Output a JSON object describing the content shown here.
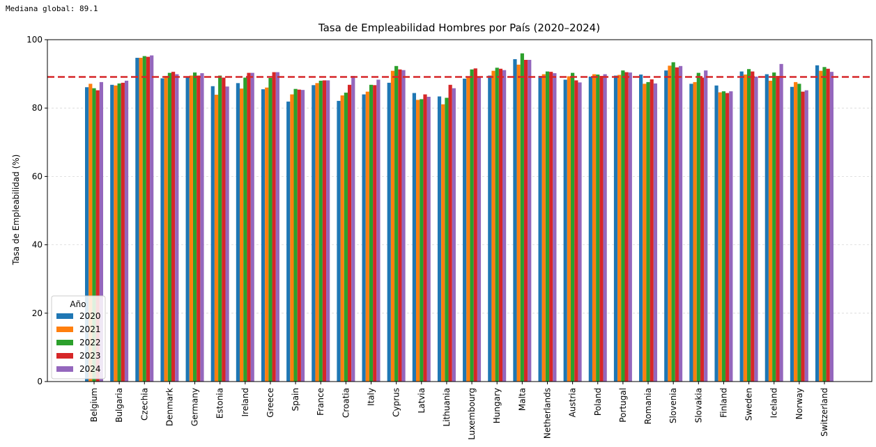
{
  "header": {
    "median_text": "Mediana global: 89.1"
  },
  "chart_data": {
    "type": "bar",
    "title": "Tasa de Empleabilidad Hombres por País (2020–2024)",
    "xlabel": "",
    "ylabel": "Tasa de Empleabilidad (%)",
    "ylim": [
      0,
      100
    ],
    "yticks": [
      0,
      20,
      40,
      60,
      80,
      100
    ],
    "grid": true,
    "legend_title": "Año",
    "legend_position": "lower-left",
    "reference_line": {
      "value": 89.1,
      "color": "#d62728",
      "style": "dashed"
    },
    "categories": [
      "Belgium",
      "Bulgaria",
      "Czechia",
      "Denmark",
      "Germany",
      "Estonia",
      "Ireland",
      "Greece",
      "Spain",
      "France",
      "Croatia",
      "Italy",
      "Cyprus",
      "Latvia",
      "Lithuania",
      "Luxembourg",
      "Hungary",
      "Malta",
      "Netherlands",
      "Austria",
      "Poland",
      "Portugal",
      "Romania",
      "Slovenia",
      "Slovakia",
      "Finland",
      "Sweden",
      "Iceland",
      "Norway",
      "Switzerland"
    ],
    "series": [
      {
        "name": "2020",
        "color": "#1f77b4",
        "values": [
          86.1,
          86.8,
          94.7,
          88.7,
          89.0,
          86.4,
          87.3,
          85.5,
          81.9,
          86.7,
          82.1,
          84.0,
          87.4,
          84.4,
          83.4,
          88.6,
          89.5,
          94.3,
          89.4,
          88.3,
          89.2,
          89.5,
          89.8,
          91.0,
          87.1,
          86.6,
          90.7,
          89.9,
          86.2,
          92.5
        ]
      },
      {
        "name": "2021",
        "color": "#ff7f0e",
        "values": [
          87.1,
          86.6,
          94.7,
          89.4,
          89.5,
          83.9,
          85.7,
          86.0,
          84.0,
          87.3,
          83.7,
          84.8,
          90.9,
          82.4,
          81.1,
          89.2,
          90.9,
          92.7,
          89.9,
          89.3,
          89.9,
          89.7,
          87.1,
          92.4,
          87.6,
          84.6,
          89.8,
          88.0,
          87.6,
          90.9
        ]
      },
      {
        "name": "2022",
        "color": "#2ca02c",
        "values": [
          85.8,
          87.2,
          95.2,
          90.3,
          90.4,
          89.5,
          88.9,
          88.8,
          85.6,
          88.0,
          84.5,
          86.8,
          92.3,
          82.6,
          83.0,
          91.3,
          91.8,
          96.0,
          90.7,
          90.3,
          89.8,
          91.0,
          87.6,
          93.4,
          90.3,
          84.9,
          91.4,
          90.4,
          87.1,
          92.0
        ]
      },
      {
        "name": "2023",
        "color": "#d62728",
        "values": [
          85.2,
          87.4,
          95.0,
          90.6,
          89.5,
          88.9,
          90.3,
          90.5,
          85.4,
          88.1,
          86.8,
          86.7,
          91.3,
          84.0,
          86.8,
          91.6,
          91.5,
          94.1,
          90.6,
          88.1,
          89.4,
          90.5,
          88.4,
          91.9,
          88.9,
          84.4,
          90.7,
          89.4,
          84.8,
          91.5
        ]
      },
      {
        "name": "2024",
        "color": "#9467bd",
        "values": [
          87.6,
          88.0,
          95.4,
          89.9,
          90.2,
          86.3,
          90.3,
          90.5,
          85.3,
          88.1,
          89.4,
          88.3,
          91.1,
          83.3,
          85.8,
          89.3,
          91.1,
          94.1,
          90.2,
          87.5,
          89.9,
          90.4,
          87.2,
          92.3,
          91.0,
          84.9,
          89.2,
          92.9,
          85.2,
          90.6
        ]
      }
    ]
  }
}
